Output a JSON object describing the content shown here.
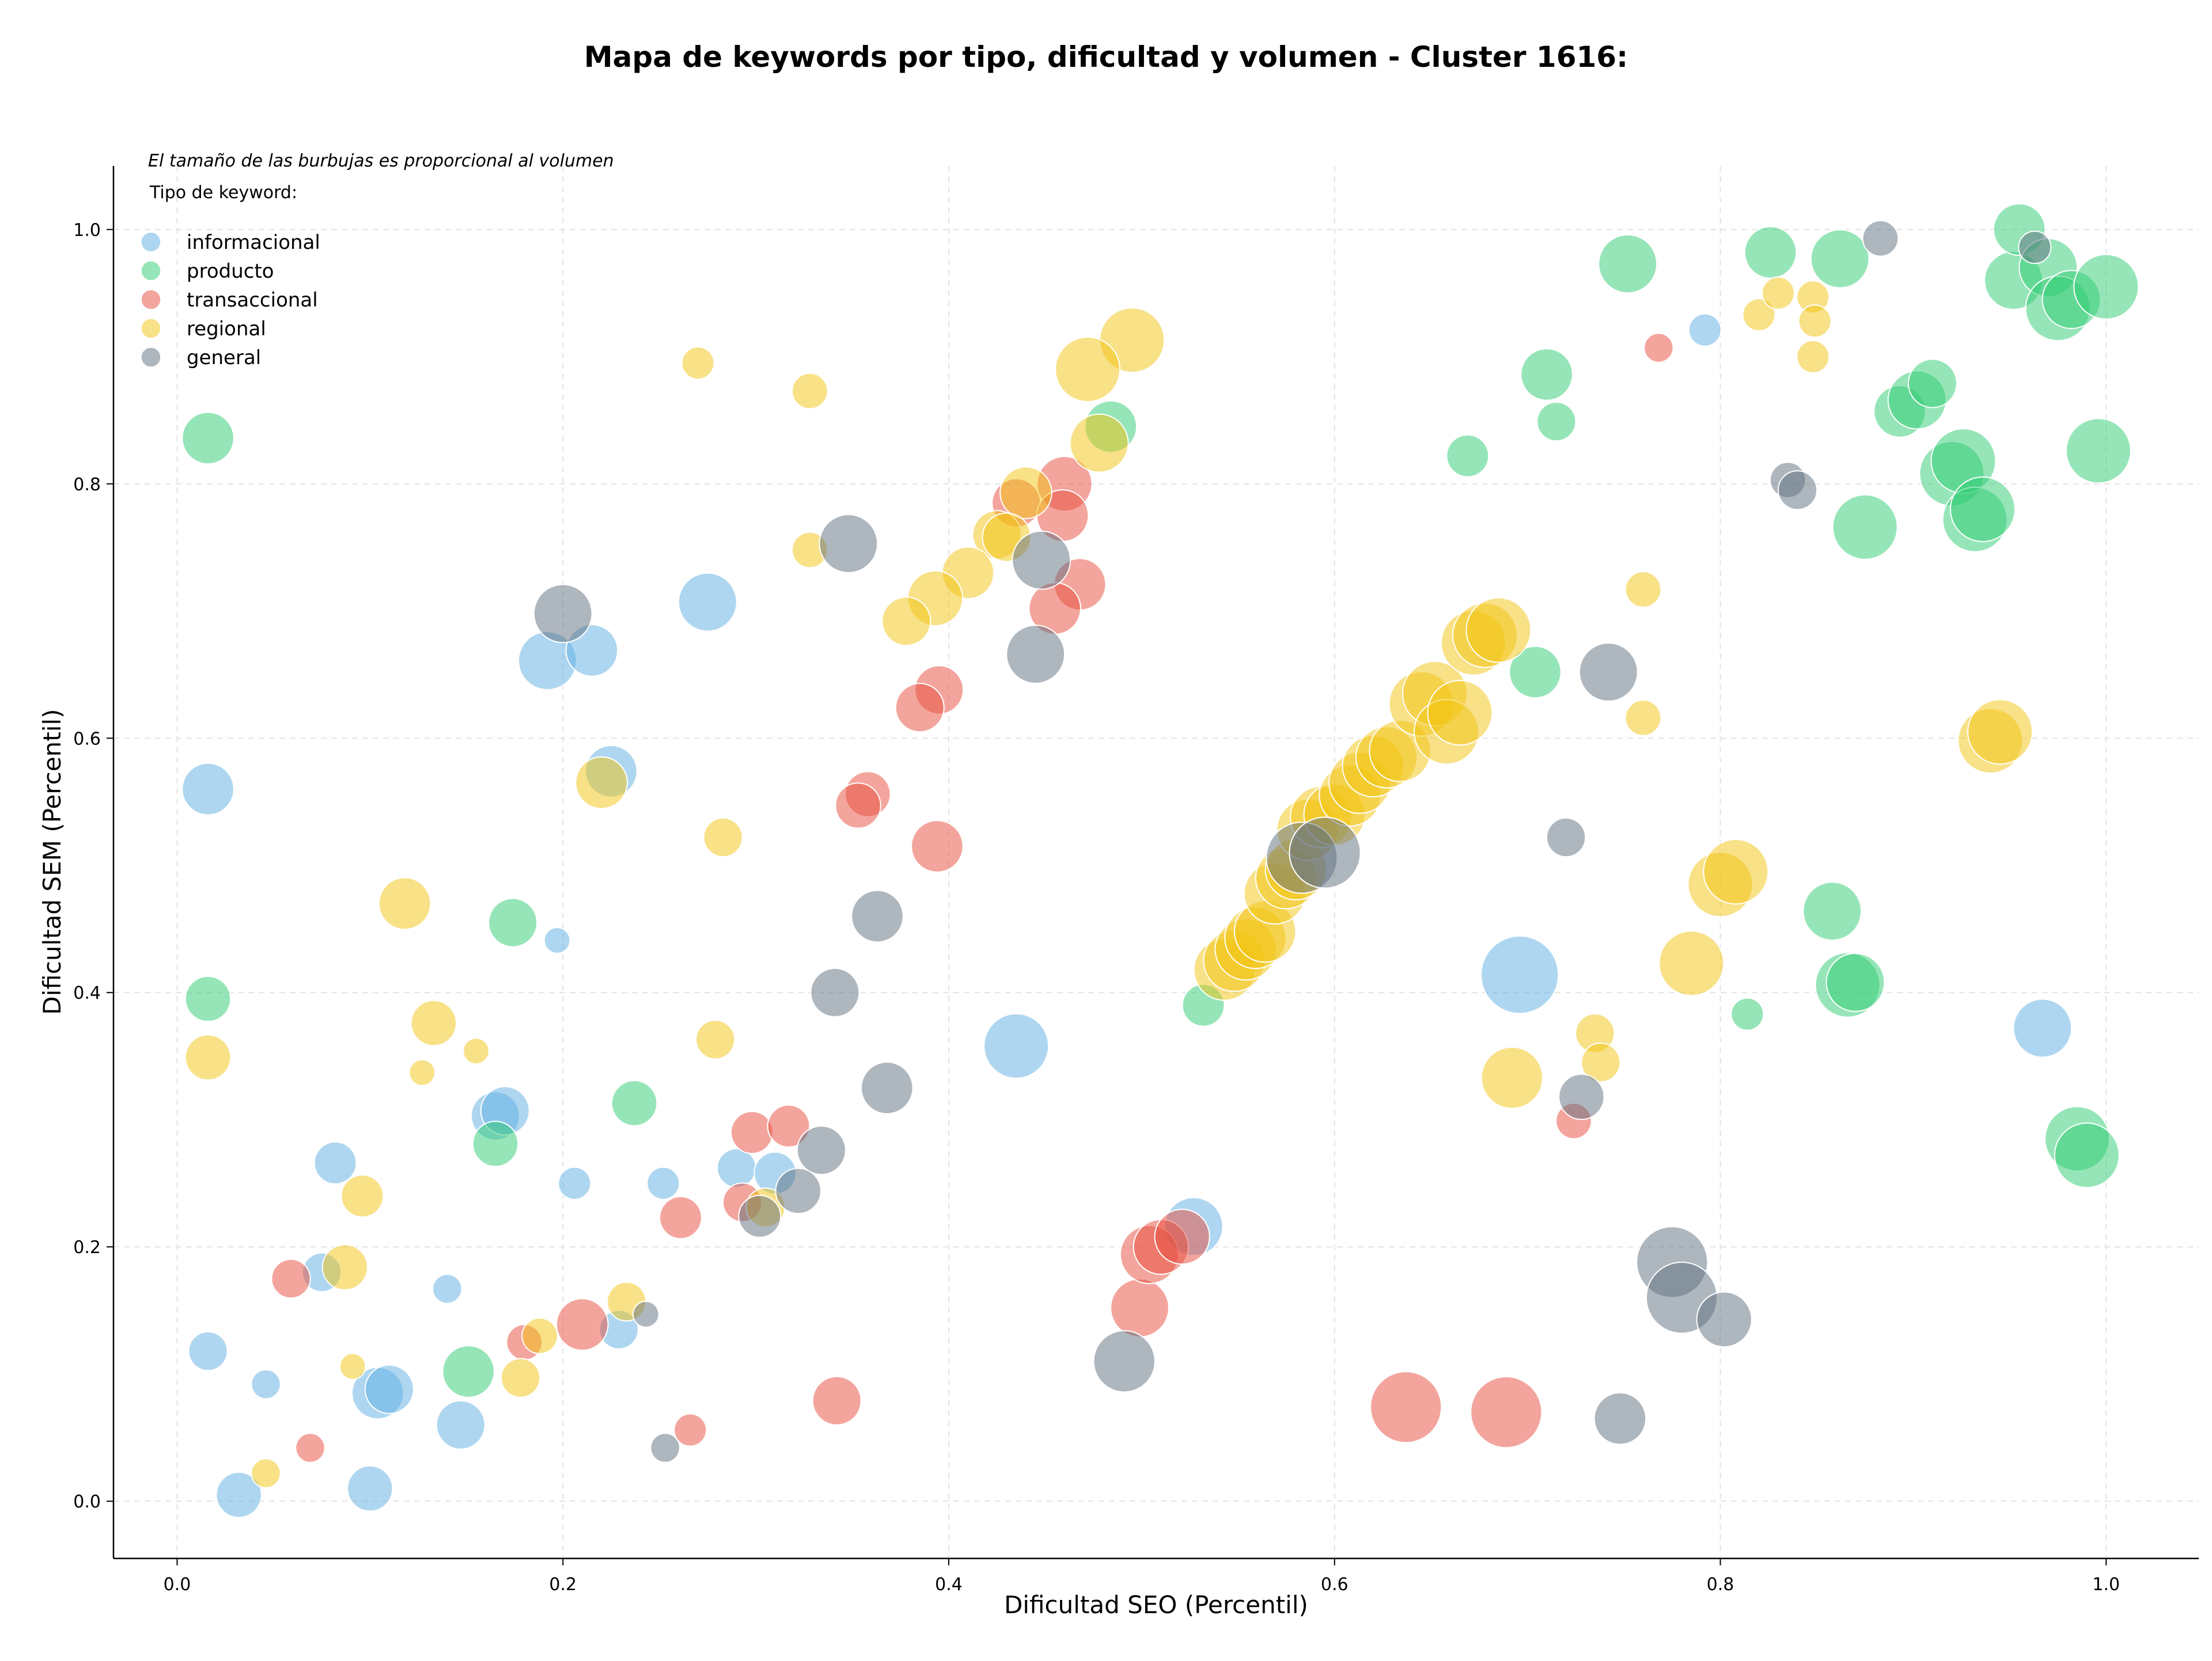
{
  "chart_data": {
    "type": "scatter",
    "title": "Mapa de keywords por tipo, dificultad y volumen - Cluster 1616:",
    "xlabel": "Dificultad SEO (Percentil)",
    "ylabel": "Dificultad SEM (Percentil)",
    "note": "El tamaño de las burbujas es proporcional al volumen",
    "legend_title": "Tipo de keyword:",
    "legend_position": "top-left",
    "grid": true,
    "xlim": [
      -0.033,
      1.048
    ],
    "ylim": [
      -0.045,
      1.05
    ],
    "x_ticks": [
      "0.0",
      "0.2",
      "0.4",
      "0.6",
      "0.8",
      "1.0"
    ],
    "y_ticks": [
      "0.0",
      "0.2",
      "0.4",
      "0.6",
      "0.8",
      "1.0"
    ],
    "series": [
      {
        "name": "informacional",
        "color": "#5dade2",
        "points": [
          {
            "x": 0.016,
            "y": 0.56,
            "s": 1.6
          },
          {
            "x": 0.192,
            "y": 0.661,
            "s": 1.8
          },
          {
            "x": 0.215,
            "y": 0.669,
            "s": 1.6
          },
          {
            "x": 0.275,
            "y": 0.707,
            "s": 1.8
          },
          {
            "x": 0.225,
            "y": 0.574,
            "s": 1.6
          },
          {
            "x": 0.197,
            "y": 0.441,
            "s": 0.8
          },
          {
            "x": 0.165,
            "y": 0.303,
            "s": 1.5
          },
          {
            "x": 0.17,
            "y": 0.307,
            "s": 1.5
          },
          {
            "x": 0.082,
            "y": 0.266,
            "s": 1.3
          },
          {
            "x": 0.206,
            "y": 0.25,
            "s": 1.0
          },
          {
            "x": 0.252,
            "y": 0.25,
            "s": 1.0
          },
          {
            "x": 0.29,
            "y": 0.262,
            "s": 1.2
          },
          {
            "x": 0.31,
            "y": 0.258,
            "s": 1.3
          },
          {
            "x": 0.435,
            "y": 0.358,
            "s": 2.0
          },
          {
            "x": 0.075,
            "y": 0.18,
            "s": 1.2
          },
          {
            "x": 0.016,
            "y": 0.118,
            "s": 1.2
          },
          {
            "x": 0.046,
            "y": 0.092,
            "s": 0.9
          },
          {
            "x": 0.104,
            "y": 0.085,
            "s": 1.6
          },
          {
            "x": 0.11,
            "y": 0.088,
            "s": 1.5
          },
          {
            "x": 0.14,
            "y": 0.167,
            "s": 0.9
          },
          {
            "x": 0.147,
            "y": 0.06,
            "s": 1.5
          },
          {
            "x": 0.229,
            "y": 0.135,
            "s": 1.2
          },
          {
            "x": 0.032,
            "y": 0.005,
            "s": 1.4
          },
          {
            "x": 0.1,
            "y": 0.01,
            "s": 1.4
          },
          {
            "x": 0.527,
            "y": 0.216,
            "s": 1.8
          },
          {
            "x": 0.696,
            "y": 0.414,
            "s": 2.4
          },
          {
            "x": 0.792,
            "y": 0.921,
            "s": 1.0
          },
          {
            "x": 0.967,
            "y": 0.372,
            "s": 1.8
          }
        ]
      },
      {
        "name": "producto",
        "color": "#2ecc71",
        "points": [
          {
            "x": 0.016,
            "y": 0.836,
            "s": 1.6
          },
          {
            "x": 0.016,
            "y": 0.395,
            "s": 1.4
          },
          {
            "x": 0.174,
            "y": 0.455,
            "s": 1.5
          },
          {
            "x": 0.237,
            "y": 0.313,
            "s": 1.4
          },
          {
            "x": 0.165,
            "y": 0.281,
            "s": 1.4
          },
          {
            "x": 0.151,
            "y": 0.102,
            "s": 1.6
          },
          {
            "x": 0.484,
            "y": 0.845,
            "s": 1.6
          },
          {
            "x": 0.532,
            "y": 0.39,
            "s": 1.3
          },
          {
            "x": 0.669,
            "y": 0.822,
            "s": 1.3
          },
          {
            "x": 0.704,
            "y": 0.652,
            "s": 1.6
          },
          {
            "x": 0.71,
            "y": 0.886,
            "s": 1.6
          },
          {
            "x": 0.715,
            "y": 0.849,
            "s": 1.2
          },
          {
            "x": 0.752,
            "y": 0.973,
            "s": 1.8
          },
          {
            "x": 0.826,
            "y": 0.982,
            "s": 1.6
          },
          {
            "x": 0.862,
            "y": 0.977,
            "s": 1.8
          },
          {
            "x": 0.858,
            "y": 0.464,
            "s": 1.8
          },
          {
            "x": 0.866,
            "y": 0.406,
            "s": 2.0
          },
          {
            "x": 0.87,
            "y": 0.408,
            "s": 1.8
          },
          {
            "x": 0.814,
            "y": 0.383,
            "s": 1.0
          },
          {
            "x": 0.875,
            "y": 0.766,
            "s": 2.0
          },
          {
            "x": 0.893,
            "y": 0.857,
            "s": 1.6
          },
          {
            "x": 0.902,
            "y": 0.866,
            "s": 1.8
          },
          {
            "x": 0.91,
            "y": 0.879,
            "s": 1.5
          },
          {
            "x": 0.92,
            "y": 0.808,
            "s": 2.0
          },
          {
            "x": 0.926,
            "y": 0.818,
            "s": 2.0
          },
          {
            "x": 0.932,
            "y": 0.772,
            "s": 2.0
          },
          {
            "x": 0.936,
            "y": 0.78,
            "s": 2.0
          },
          {
            "x": 0.952,
            "y": 0.96,
            "s": 1.8
          },
          {
            "x": 0.955,
            "y": 1.0,
            "s": 1.6
          },
          {
            "x": 0.97,
            "y": 0.97,
            "s": 1.8
          },
          {
            "x": 0.975,
            "y": 0.938,
            "s": 2.0
          },
          {
            "x": 0.982,
            "y": 0.945,
            "s": 1.8
          },
          {
            "x": 1.0,
            "y": 0.955,
            "s": 2.0
          },
          {
            "x": 0.996,
            "y": 0.826,
            "s": 2.0
          },
          {
            "x": 0.985,
            "y": 0.285,
            "s": 2.0
          },
          {
            "x": 0.99,
            "y": 0.272,
            "s": 2.0
          }
        ]
      },
      {
        "name": "transaccional",
        "color": "#e74c3c",
        "points": [
          {
            "x": 0.435,
            "y": 0.785,
            "s": 1.5
          },
          {
            "x": 0.46,
            "y": 0.8,
            "s": 1.7
          },
          {
            "x": 0.459,
            "y": 0.775,
            "s": 1.6
          },
          {
            "x": 0.468,
            "y": 0.721,
            "s": 1.6
          },
          {
            "x": 0.455,
            "y": 0.702,
            "s": 1.6
          },
          {
            "x": 0.395,
            "y": 0.638,
            "s": 1.5
          },
          {
            "x": 0.385,
            "y": 0.624,
            "s": 1.5
          },
          {
            "x": 0.358,
            "y": 0.556,
            "s": 1.4
          },
          {
            "x": 0.353,
            "y": 0.547,
            "s": 1.4
          },
          {
            "x": 0.394,
            "y": 0.515,
            "s": 1.6
          },
          {
            "x": 0.298,
            "y": 0.29,
            "s": 1.3
          },
          {
            "x": 0.317,
            "y": 0.295,
            "s": 1.3
          },
          {
            "x": 0.293,
            "y": 0.235,
            "s": 1.2
          },
          {
            "x": 0.261,
            "y": 0.223,
            "s": 1.3
          },
          {
            "x": 0.059,
            "y": 0.175,
            "s": 1.2
          },
          {
            "x": 0.18,
            "y": 0.125,
            "s": 1.1
          },
          {
            "x": 0.21,
            "y": 0.139,
            "s": 1.6
          },
          {
            "x": 0.266,
            "y": 0.056,
            "s": 1.0
          },
          {
            "x": 0.342,
            "y": 0.079,
            "s": 1.5
          },
          {
            "x": 0.069,
            "y": 0.042,
            "s": 0.9
          },
          {
            "x": 0.499,
            "y": 0.152,
            "s": 1.8
          },
          {
            "x": 0.504,
            "y": 0.194,
            "s": 1.8
          },
          {
            "x": 0.51,
            "y": 0.2,
            "s": 1.7
          },
          {
            "x": 0.521,
            "y": 0.208,
            "s": 1.7
          },
          {
            "x": 0.637,
            "y": 0.074,
            "s": 2.2
          },
          {
            "x": 0.689,
            "y": 0.07,
            "s": 2.2
          },
          {
            "x": 0.724,
            "y": 0.299,
            "s": 1.1
          },
          {
            "x": 0.768,
            "y": 0.907,
            "s": 0.9
          }
        ]
      },
      {
        "name": "regional",
        "color": "#f1c40f",
        "points": [
          {
            "x": 0.27,
            "y": 0.895,
            "s": 1.0
          },
          {
            "x": 0.328,
            "y": 0.873,
            "s": 1.1
          },
          {
            "x": 0.328,
            "y": 0.748,
            "s": 1.1
          },
          {
            "x": 0.495,
            "y": 0.913,
            "s": 2.0
          },
          {
            "x": 0.472,
            "y": 0.89,
            "s": 2.0
          },
          {
            "x": 0.478,
            "y": 0.832,
            "s": 1.8
          },
          {
            "x": 0.44,
            "y": 0.793,
            "s": 1.6
          },
          {
            "x": 0.425,
            "y": 0.76,
            "s": 1.5
          },
          {
            "x": 0.43,
            "y": 0.758,
            "s": 1.5
          },
          {
            "x": 0.41,
            "y": 0.73,
            "s": 1.6
          },
          {
            "x": 0.393,
            "y": 0.71,
            "s": 1.7
          },
          {
            "x": 0.378,
            "y": 0.692,
            "s": 1.5
          },
          {
            "x": 0.22,
            "y": 0.565,
            "s": 1.6
          },
          {
            "x": 0.283,
            "y": 0.522,
            "s": 1.2
          },
          {
            "x": 0.118,
            "y": 0.47,
            "s": 1.6
          },
          {
            "x": 0.133,
            "y": 0.376,
            "s": 1.4
          },
          {
            "x": 0.155,
            "y": 0.354,
            "s": 0.8
          },
          {
            "x": 0.127,
            "y": 0.337,
            "s": 0.8
          },
          {
            "x": 0.016,
            "y": 0.349,
            "s": 1.4
          },
          {
            "x": 0.279,
            "y": 0.363,
            "s": 1.2
          },
          {
            "x": 0.096,
            "y": 0.24,
            "s": 1.3
          },
          {
            "x": 0.087,
            "y": 0.184,
            "s": 1.4
          },
          {
            "x": 0.091,
            "y": 0.106,
            "s": 0.8
          },
          {
            "x": 0.178,
            "y": 0.097,
            "s": 1.2
          },
          {
            "x": 0.188,
            "y": 0.13,
            "s": 1.1
          },
          {
            "x": 0.233,
            "y": 0.157,
            "s": 1.2
          },
          {
            "x": 0.046,
            "y": 0.022,
            "s": 0.9
          },
          {
            "x": 0.305,
            "y": 0.231,
            "s": 1.2
          },
          {
            "x": 0.543,
            "y": 0.418,
            "s": 1.9
          },
          {
            "x": 0.548,
            "y": 0.425,
            "s": 1.9
          },
          {
            "x": 0.554,
            "y": 0.434,
            "s": 1.9
          },
          {
            "x": 0.559,
            "y": 0.443,
            "s": 1.9
          },
          {
            "x": 0.564,
            "y": 0.448,
            "s": 1.9
          },
          {
            "x": 0.569,
            "y": 0.478,
            "s": 1.9
          },
          {
            "x": 0.575,
            "y": 0.49,
            "s": 1.9
          },
          {
            "x": 0.58,
            "y": 0.497,
            "s": 1.9
          },
          {
            "x": 0.586,
            "y": 0.528,
            "s": 1.9
          },
          {
            "x": 0.593,
            "y": 0.538,
            "s": 1.9
          },
          {
            "x": 0.6,
            "y": 0.54,
            "s": 1.9
          },
          {
            "x": 0.608,
            "y": 0.555,
            "s": 1.9
          },
          {
            "x": 0.613,
            "y": 0.565,
            "s": 1.9
          },
          {
            "x": 0.62,
            "y": 0.578,
            "s": 1.9
          },
          {
            "x": 0.627,
            "y": 0.585,
            "s": 1.9
          },
          {
            "x": 0.634,
            "y": 0.59,
            "s": 1.9
          },
          {
            "x": 0.645,
            "y": 0.627,
            "s": 2.0
          },
          {
            "x": 0.652,
            "y": 0.635,
            "s": 2.0
          },
          {
            "x": 0.658,
            "y": 0.605,
            "s": 2.0
          },
          {
            "x": 0.665,
            "y": 0.62,
            "s": 2.0
          },
          {
            "x": 0.672,
            "y": 0.675,
            "s": 2.0
          },
          {
            "x": 0.678,
            "y": 0.681,
            "s": 2.0
          },
          {
            "x": 0.685,
            "y": 0.685,
            "s": 2.0
          },
          {
            "x": 0.692,
            "y": 0.333,
            "s": 1.9
          },
          {
            "x": 0.735,
            "y": 0.368,
            "s": 1.2
          },
          {
            "x": 0.738,
            "y": 0.345,
            "s": 1.2
          },
          {
            "x": 0.76,
            "y": 0.717,
            "s": 1.1
          },
          {
            "x": 0.76,
            "y": 0.616,
            "s": 1.1
          },
          {
            "x": 0.785,
            "y": 0.423,
            "s": 2.0
          },
          {
            "x": 0.8,
            "y": 0.485,
            "s": 2.0
          },
          {
            "x": 0.808,
            "y": 0.495,
            "s": 2.0
          },
          {
            "x": 0.82,
            "y": 0.933,
            "s": 1.0
          },
          {
            "x": 0.83,
            "y": 0.95,
            "s": 1.0
          },
          {
            "x": 0.848,
            "y": 0.947,
            "s": 1.0
          },
          {
            "x": 0.849,
            "y": 0.928,
            "s": 1.0
          },
          {
            "x": 0.848,
            "y": 0.9,
            "s": 1.0
          },
          {
            "x": 0.94,
            "y": 0.598,
            "s": 2.0
          },
          {
            "x": 0.945,
            "y": 0.605,
            "s": 2.0
          }
        ]
      },
      {
        "name": "general",
        "color": "#5d6d7e",
        "points": [
          {
            "x": 0.2,
            "y": 0.698,
            "s": 1.8
          },
          {
            "x": 0.348,
            "y": 0.753,
            "s": 1.8
          },
          {
            "x": 0.448,
            "y": 0.74,
            "s": 1.8
          },
          {
            "x": 0.445,
            "y": 0.666,
            "s": 1.8
          },
          {
            "x": 0.363,
            "y": 0.46,
            "s": 1.6
          },
          {
            "x": 0.341,
            "y": 0.4,
            "s": 1.5
          },
          {
            "x": 0.368,
            "y": 0.325,
            "s": 1.6
          },
          {
            "x": 0.334,
            "y": 0.276,
            "s": 1.5
          },
          {
            "x": 0.322,
            "y": 0.244,
            "s": 1.4
          },
          {
            "x": 0.302,
            "y": 0.224,
            "s": 1.3
          },
          {
            "x": 0.243,
            "y": 0.147,
            "s": 0.8
          },
          {
            "x": 0.253,
            "y": 0.042,
            "s": 0.9
          },
          {
            "x": 0.491,
            "y": 0.11,
            "s": 1.9
          },
          {
            "x": 0.583,
            "y": 0.506,
            "s": 2.2
          },
          {
            "x": 0.595,
            "y": 0.51,
            "s": 2.2
          },
          {
            "x": 0.72,
            "y": 0.522,
            "s": 1.2
          },
          {
            "x": 0.742,
            "y": 0.652,
            "s": 1.8
          },
          {
            "x": 0.728,
            "y": 0.318,
            "s": 1.4
          },
          {
            "x": 0.748,
            "y": 0.065,
            "s": 1.6
          },
          {
            "x": 0.775,
            "y": 0.188,
            "s": 2.2
          },
          {
            "x": 0.78,
            "y": 0.16,
            "s": 2.2
          },
          {
            "x": 0.802,
            "y": 0.143,
            "s": 1.7
          },
          {
            "x": 0.835,
            "y": 0.803,
            "s": 1.1
          },
          {
            "x": 0.84,
            "y": 0.795,
            "s": 1.2
          },
          {
            "x": 0.883,
            "y": 0.993,
            "s": 1.1
          },
          {
            "x": 0.963,
            "y": 0.986,
            "s": 1.0
          }
        ]
      }
    ]
  }
}
